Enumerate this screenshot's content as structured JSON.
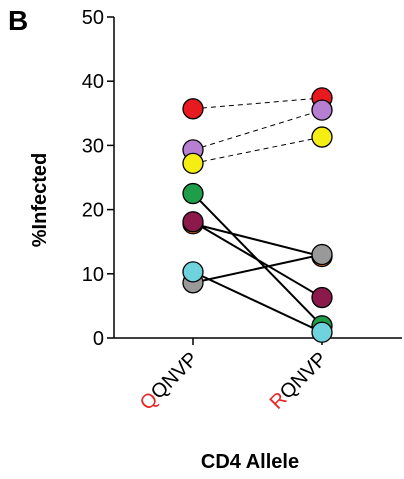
{
  "chart_data": {
    "type": "line",
    "panel_label": "B",
    "xlabel": "CD4 Allele",
    "ylabel": "%Infected",
    "ylim": [
      0,
      50
    ],
    "yticks": [
      0,
      10,
      20,
      30,
      40,
      50
    ],
    "grid": false,
    "categories": [
      {
        "first": "Q",
        "rest": "QNVP",
        "first_color": "#e8262a"
      },
      {
        "first": "R",
        "rest": "QNVP",
        "first_color": "#e8262a"
      }
    ],
    "pairs": [
      {
        "color": "#e8191f",
        "values": [
          35.7,
          37.4
        ],
        "line": "dashed"
      },
      {
        "color": "#b77fd1",
        "values": [
          29.3,
          35.5
        ],
        "line": "dashed"
      },
      {
        "color": "#f5ed13",
        "values": [
          27.2,
          31.3
        ],
        "line": "dashed"
      },
      {
        "color": "#1f9e4a",
        "values": [
          22.5,
          1.9
        ],
        "line": "solid"
      },
      {
        "color": "#f58220",
        "values": [
          17.8,
          12.7
        ],
        "line": "solid"
      },
      {
        "color": "#8b1a4a",
        "values": [
          18.1,
          6.3
        ],
        "line": "solid"
      },
      {
        "color": "#999999",
        "values": [
          8.6,
          13.0
        ],
        "line": "solid"
      },
      {
        "color": "#6fd3de",
        "values": [
          10.3,
          0.9
        ],
        "line": "solid"
      }
    ]
  }
}
